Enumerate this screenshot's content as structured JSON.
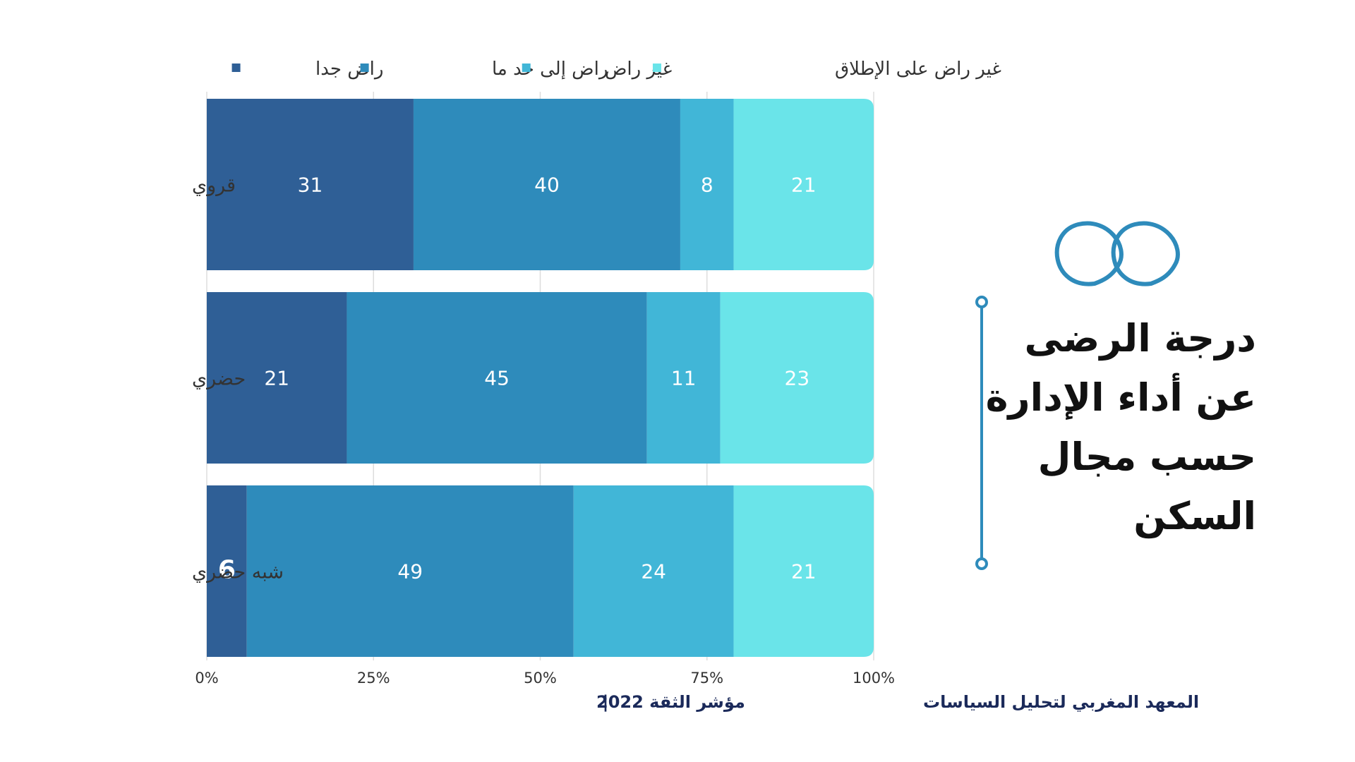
{
  "chart_data": {
    "type": "bar",
    "orientation": "horizontal",
    "stacked": true,
    "categories": [
      "قروي",
      "حضري",
      "شبه حضري"
    ],
    "series": [
      {
        "name": "راض جدا",
        "values": [
          31,
          21,
          6
        ],
        "color": "#2f5f96"
      },
      {
        "name": "راض إلى حد ما",
        "values": [
          40,
          45,
          49
        ],
        "color": "#2e8bbb"
      },
      {
        "name": "غير راض",
        "values": [
          8,
          11,
          24
        ],
        "color": "#41b6d7"
      },
      {
        "name": "غير راض على الإطلاق",
        "values": [
          21,
          23,
          21
        ],
        "color": "#6ae4e9"
      }
    ],
    "xlim": [
      0,
      100
    ],
    "x_ticks": [
      "0%",
      "25%",
      "50%",
      "75%",
      "100%"
    ],
    "grid": true,
    "legend_position": "top"
  },
  "side_title": {
    "lines": [
      "درجة الرضى",
      "عن أداء الإدارة",
      "حسب مجال",
      "السكن"
    ]
  },
  "footer": {
    "source": "المعهد المغربي لتحليل السياسات",
    "separator": "|",
    "index_name": "مؤشر الثقة 2022"
  },
  "icons": {
    "quote": "quote-mark-icon",
    "timeline": "vertical-line-icon"
  },
  "colors": {
    "accent": "#2e8bbb",
    "footer_text": "#1b2a5a"
  }
}
